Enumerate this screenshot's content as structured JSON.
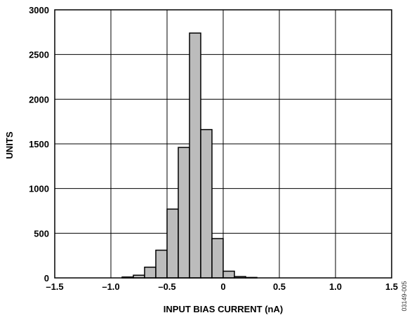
{
  "chart_data": {
    "type": "bar",
    "xlabel": "INPUT BIAS CURRENT (nA)",
    "ylabel": "UNITS",
    "xlim": [
      -1.5,
      1.5
    ],
    "ylim": [
      0,
      3000
    ],
    "grid": true,
    "bin_width": 0.1,
    "bars": [
      {
        "x0": -0.9,
        "x1": -0.8,
        "value": 10
      },
      {
        "x0": -0.8,
        "x1": -0.7,
        "value": 30
      },
      {
        "x0": -0.7,
        "x1": -0.6,
        "value": 120
      },
      {
        "x0": -0.6,
        "x1": -0.5,
        "value": 310
      },
      {
        "x0": -0.5,
        "x1": -0.4,
        "value": 770
      },
      {
        "x0": -0.4,
        "x1": -0.3,
        "value": 1460
      },
      {
        "x0": -0.3,
        "x1": -0.2,
        "value": 2740
      },
      {
        "x0": -0.2,
        "x1": -0.1,
        "value": 1660
      },
      {
        "x0": -0.1,
        "x1": 0.0,
        "value": 440
      },
      {
        "x0": 0.0,
        "x1": 0.1,
        "value": 75
      },
      {
        "x0": 0.1,
        "x1": 0.2,
        "value": 15
      },
      {
        "x0": 0.2,
        "x1": 0.3,
        "value": 5
      }
    ],
    "x_ticks": [
      {
        "value": -1.5,
        "label": "–1.5"
      },
      {
        "value": -1.0,
        "label": "–1.0"
      },
      {
        "value": -0.5,
        "label": "–0.5"
      },
      {
        "value": 0,
        "label": "0"
      },
      {
        "value": 0.5,
        "label": "0.5"
      },
      {
        "value": 1.0,
        "label": "1.0"
      },
      {
        "value": 1.5,
        "label": "1.5"
      }
    ],
    "y_ticks": [
      {
        "value": 0,
        "label": "0"
      },
      {
        "value": 500,
        "label": "500"
      },
      {
        "value": 1000,
        "label": "1000"
      },
      {
        "value": 1500,
        "label": "1500"
      },
      {
        "value": 2000,
        "label": "2000"
      },
      {
        "value": 2500,
        "label": "2500"
      },
      {
        "value": 3000,
        "label": "3000"
      }
    ],
    "x_gridlines": [
      -1.0,
      -0.5,
      0,
      0.5,
      1.0
    ],
    "colors": {
      "bar_fill": "#bcbcbc",
      "bar_stroke": "#000000",
      "grid": "#000000"
    }
  },
  "figure_id": "03149-005"
}
